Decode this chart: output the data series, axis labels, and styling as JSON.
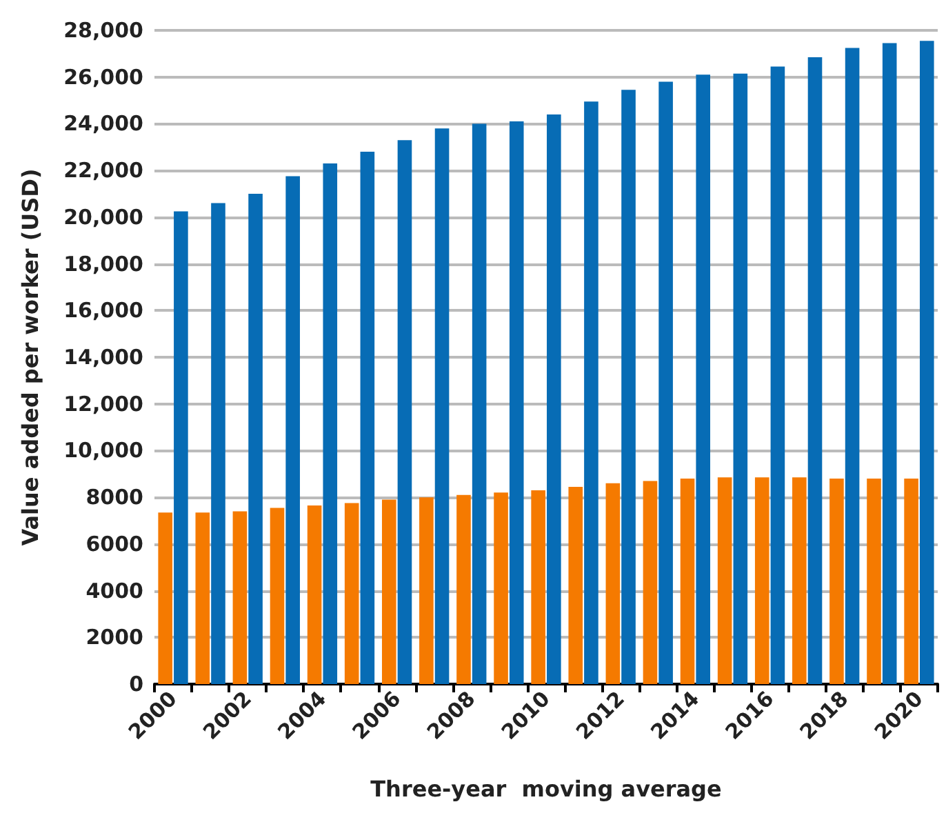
{
  "chart_data": {
    "type": "bar",
    "xlabel": "Three-year  moving average",
    "ylabel": "Value added per worker (USD)",
    "categories": [
      "2000",
      null,
      "2002",
      null,
      "2004",
      null,
      "2006",
      null,
      "2008",
      null,
      "2010",
      null,
      "2012",
      null,
      "2014",
      null,
      "2016",
      null,
      "2018",
      null,
      "2020"
    ],
    "series": [
      {
        "color": "#f57a00",
        "values": [
          7350,
          7350,
          7400,
          7550,
          7650,
          7750,
          7900,
          8000,
          8100,
          8200,
          8300,
          8450,
          8600,
          8700,
          8800,
          8850,
          8850,
          8850,
          8800,
          8800,
          8800
        ]
      },
      {
        "color": "#076cb5",
        "values": [
          20250,
          20600,
          21000,
          21750,
          22300,
          22800,
          23300,
          23800,
          24000,
          24100,
          24400,
          24950,
          25450,
          25800,
          26100,
          26150,
          26450,
          26850,
          27250,
          27450,
          27550
        ]
      }
    ],
    "ylim": [
      0,
      28000
    ],
    "yticks": [
      0,
      2000,
      4000,
      6000,
      8000,
      {
        "value": 10000,
        "label": "10,000"
      },
      {
        "value": 12000,
        "label": "12,000"
      },
      {
        "value": 14000,
        "label": "14,000"
      },
      {
        "value": 16000,
        "label": "16,000"
      },
      {
        "value": 18000,
        "label": "18,000"
      },
      {
        "value": 20000,
        "label": "20,000"
      },
      {
        "value": 22000,
        "label": "22,000"
      },
      {
        "value": 24000,
        "label": "24,000"
      },
      {
        "value": 26000,
        "label": "26,000"
      },
      {
        "value": 28000,
        "label": "28,000"
      }
    ],
    "grid": "y"
  }
}
